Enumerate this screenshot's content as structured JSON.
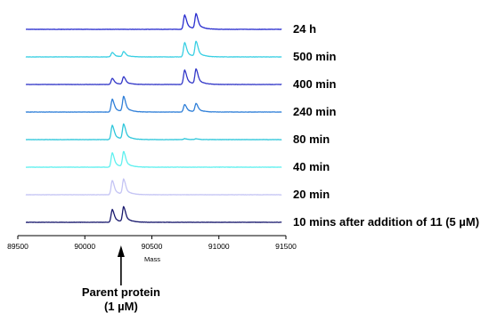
{
  "chart_data": {
    "type": "line",
    "title": "",
    "xlabel": "Mass",
    "ylabel": "",
    "xlim": [
      89500,
      91500
    ],
    "x_ticks": [
      89500,
      90000,
      90500,
      91000,
      91500
    ],
    "x_tick_labels": [
      "89500",
      "90000",
      "90500",
      "91000",
      "91500"
    ],
    "grid": false,
    "layout": "stacked traces, oldest at bottom",
    "series": [
      {
        "name": "24 h",
        "color": "#2a2ecf",
        "peaks": [
          {
            "mass": 90745,
            "height": 0.95
          },
          {
            "mass": 90830,
            "height": 1.0
          }
        ]
      },
      {
        "name": "500 min",
        "color": "#39cfe3",
        "peaks": [
          {
            "mass": 90205,
            "height": 0.3
          },
          {
            "mass": 90290,
            "height": 0.35
          },
          {
            "mass": 90745,
            "height": 0.95
          },
          {
            "mass": 90830,
            "height": 1.0
          }
        ]
      },
      {
        "name": "400 min",
        "color": "#3338c8",
        "peaks": [
          {
            "mass": 90205,
            "height": 0.4
          },
          {
            "mass": 90290,
            "height": 0.5
          },
          {
            "mass": 90745,
            "height": 0.95
          },
          {
            "mass": 90830,
            "height": 1.0
          }
        ]
      },
      {
        "name": "240 min",
        "color": "#2f7fd8",
        "peaks": [
          {
            "mass": 90205,
            "height": 0.85
          },
          {
            "mass": 90290,
            "height": 1.0
          },
          {
            "mass": 90745,
            "height": 0.5
          },
          {
            "mass": 90830,
            "height": 0.55
          }
        ]
      },
      {
        "name": "80 min",
        "color": "#2fc7db",
        "peaks": [
          {
            "mass": 90205,
            "height": 0.95
          },
          {
            "mass": 90290,
            "height": 1.0
          },
          {
            "mass": 90745,
            "height": 0.06
          },
          {
            "mass": 90830,
            "height": 0.06
          }
        ]
      },
      {
        "name": "40 min",
        "color": "#5ff0ef",
        "peaks": [
          {
            "mass": 90205,
            "height": 0.95
          },
          {
            "mass": 90290,
            "height": 1.0
          }
        ]
      },
      {
        "name": "20 min",
        "color": "#c4c4f4",
        "peaks": [
          {
            "mass": 90205,
            "height": 0.95
          },
          {
            "mass": 90290,
            "height": 1.0
          }
        ]
      },
      {
        "name": "10 mins after addition of 11 (5 µM)",
        "color": "#1a1a6e",
        "peaks": [
          {
            "mass": 90205,
            "height": 0.85
          },
          {
            "mass": 90290,
            "height": 1.0
          }
        ]
      }
    ],
    "annotations": [
      {
        "text_line1": "Parent protein",
        "text_line2": "(1 µM)",
        "arrow_to_mass": 90270
      }
    ]
  }
}
